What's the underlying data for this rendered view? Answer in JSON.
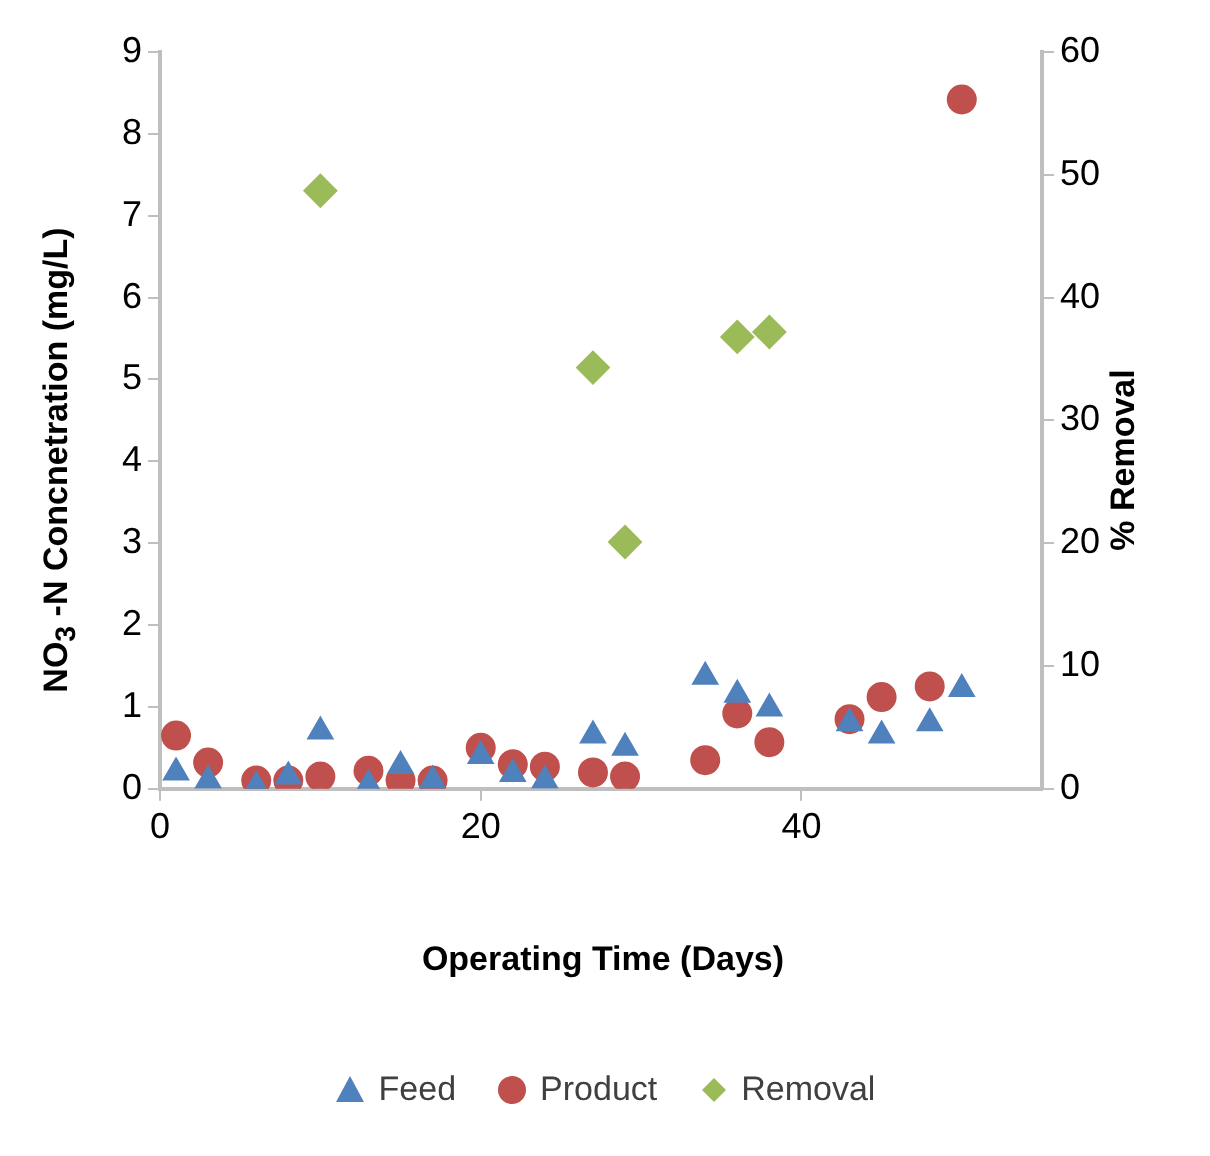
{
  "chart_data": {
    "type": "scatter",
    "xlabel": "Operating Time (Days)",
    "ylabel": "NO$_{3}$ -N Concnetration (mg/L)",
    "y2label": "% Removal",
    "xlim": [
      0,
      55
    ],
    "xticks": [
      0,
      20,
      40
    ],
    "ylim": [
      0,
      9
    ],
    "yticks": [
      0,
      1,
      2,
      3,
      4,
      5,
      6,
      7,
      8,
      9
    ],
    "y2lim": [
      0,
      60
    ],
    "y2ticks": [
      0,
      10,
      20,
      30,
      40,
      50,
      60
    ],
    "grid": false,
    "legend": "bottom",
    "series": [
      {
        "name": "Feed",
        "color": "#4f81bd",
        "marker": "triangle",
        "x": [
          1,
          3,
          6,
          8,
          10,
          13,
          15,
          17,
          20,
          22,
          24,
          27,
          29,
          34,
          36,
          38,
          43,
          45,
          48,
          50
        ],
        "values": [
          0.2,
          0.1,
          0.03,
          0.15,
          0.7,
          0.05,
          0.28,
          0.1,
          0.4,
          0.18,
          0.1,
          0.65,
          0.5,
          1.37,
          1.15,
          0.98,
          0.8,
          0.65,
          0.8,
          1.22
        ]
      },
      {
        "name": "Product",
        "color": "#c0504d",
        "marker": "circle",
        "x": [
          1,
          3,
          6,
          8,
          10,
          13,
          15,
          17,
          20,
          22,
          24,
          27,
          29,
          34,
          36,
          38,
          43,
          45,
          48,
          50
        ],
        "values": [
          0.65,
          0.32,
          0.1,
          0.1,
          0.15,
          0.22,
          0.1,
          0.1,
          0.5,
          0.3,
          0.27,
          0.2,
          0.15,
          0.35,
          0.92,
          0.57,
          0.85,
          1.12,
          1.25,
          8.42
        ]
      },
      {
        "name": "Removal",
        "color": "#9bbb59",
        "marker": "diamond",
        "axis": "y2",
        "x": [
          10,
          27,
          29,
          36,
          38
        ],
        "values": [
          48.7,
          34.3,
          20.1,
          36.8,
          37.2
        ]
      }
    ]
  }
}
